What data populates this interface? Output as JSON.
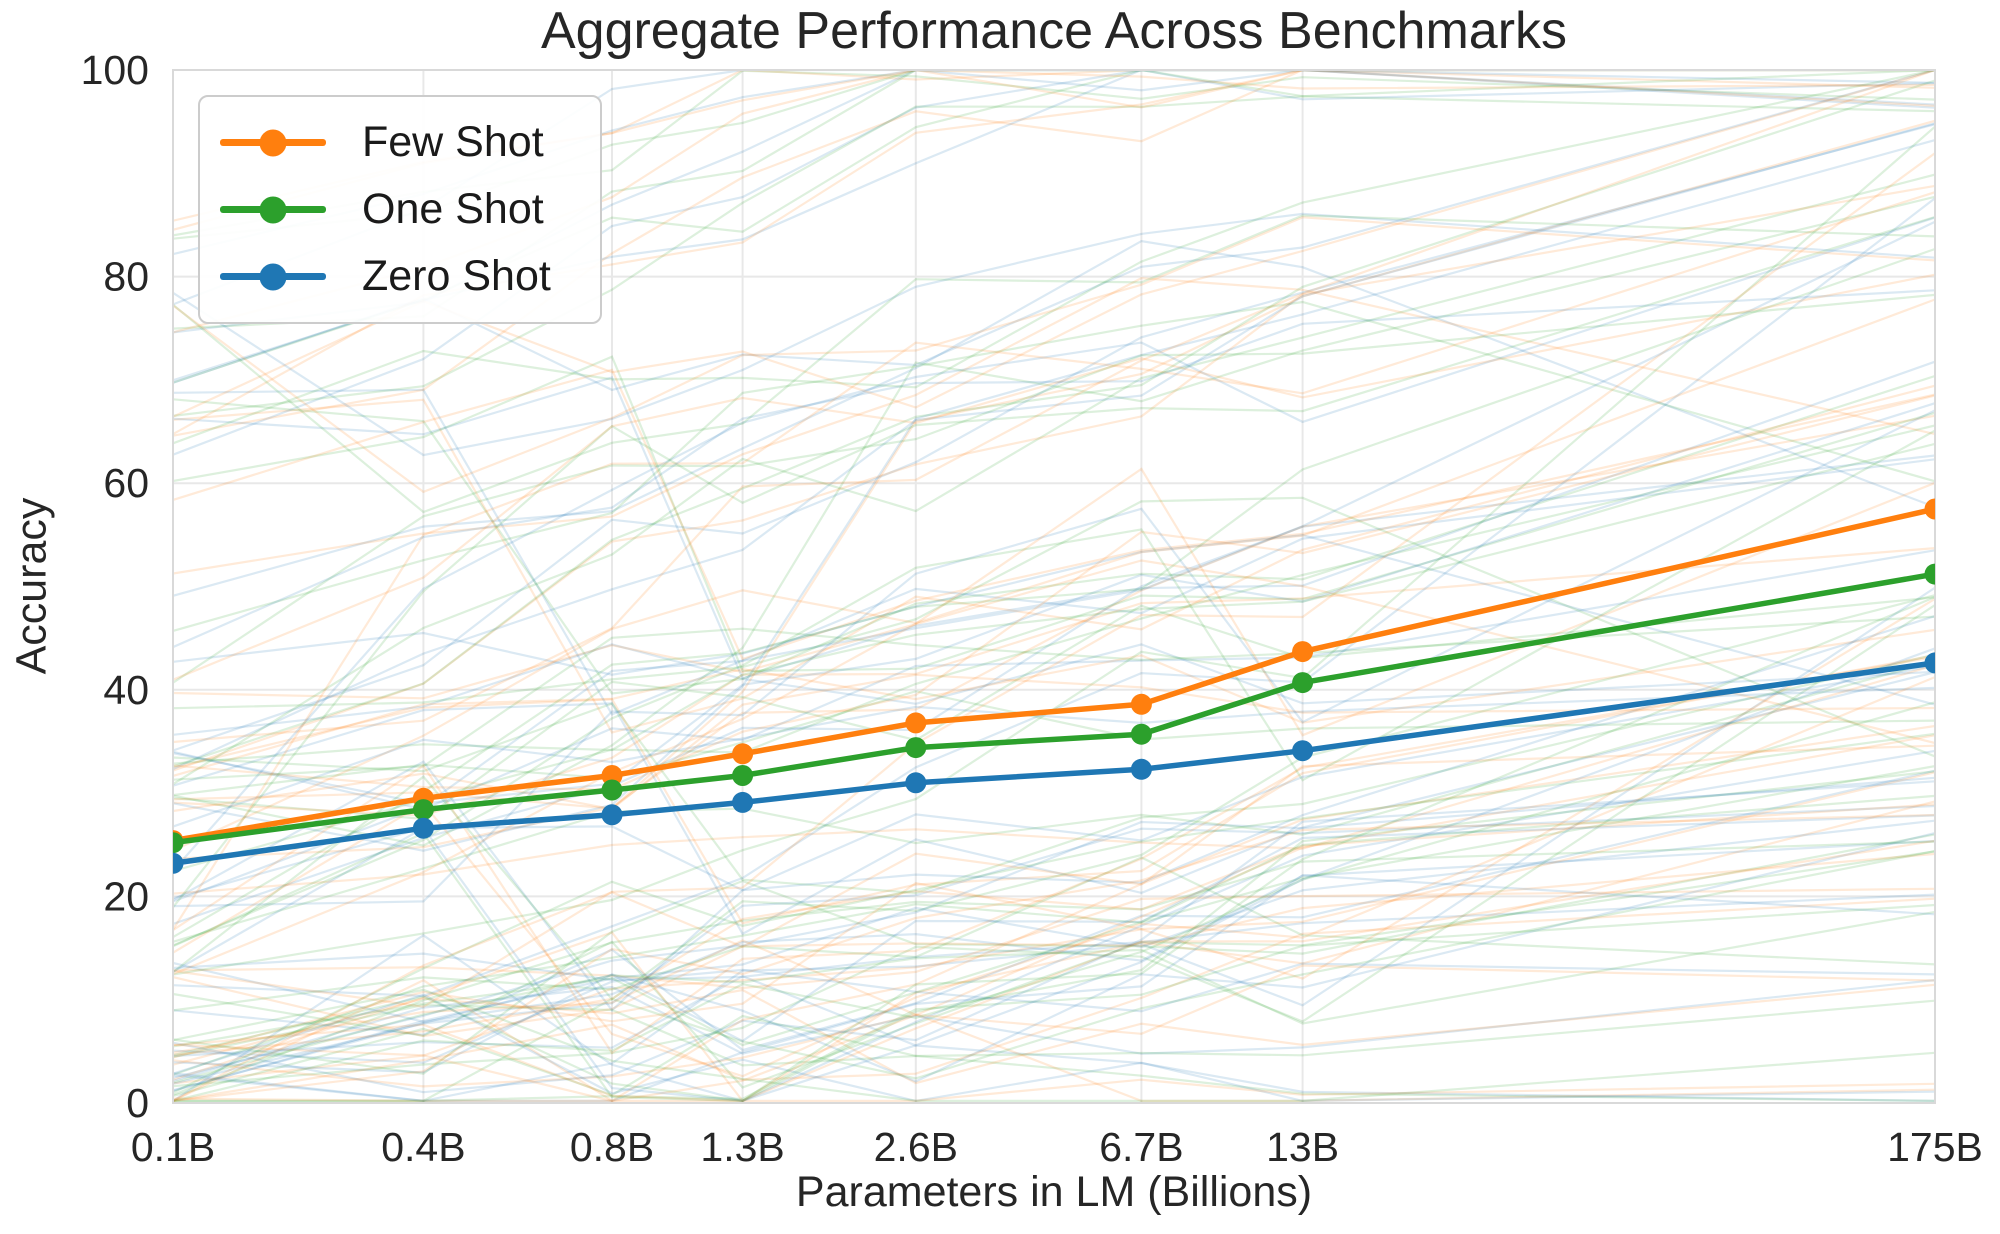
{
  "chart_data": {
    "type": "line",
    "title": "Aggregate Performance Across Benchmarks",
    "xlabel": "Parameters in LM (Billions)",
    "ylabel": "Accuracy",
    "x_scale": "log",
    "x_values": [
      0.125,
      0.35,
      0.76,
      1.3,
      2.65,
      6.7,
      13,
      175
    ],
    "x_tick_labels": [
      "0.1B",
      "0.4B",
      "0.8B",
      "1.3B",
      "2.6B",
      "6.7B",
      "13B",
      "175B"
    ],
    "y_ticks": [
      0,
      20,
      40,
      60,
      80,
      100
    ],
    "y_tick_labels": [
      "0",
      "20",
      "40",
      "60",
      "80",
      "100"
    ],
    "ylim": [
      0,
      100
    ],
    "grid": true,
    "legend_position": "upper left",
    "series": [
      {
        "name": "Few Shot",
        "color": "#ff7f0e",
        "values": [
          25.4,
          29.5,
          31.7,
          33.8,
          36.8,
          38.6,
          43.7,
          57.5
        ]
      },
      {
        "name": "One Shot",
        "color": "#2ca02c",
        "values": [
          25.2,
          28.4,
          30.3,
          31.7,
          34.4,
          35.7,
          40.7,
          51.2
        ]
      },
      {
        "name": "Zero Shot",
        "color": "#1f77b4",
        "values": [
          23.2,
          26.6,
          27.9,
          29.1,
          31.0,
          32.3,
          34.1,
          42.6
        ]
      }
    ],
    "background_lines": {
      "description": "Faint lines: individual benchmark results per setting",
      "colors": [
        "#1f77b4",
        "#2ca02c",
        "#ff7f0e"
      ],
      "benchmark_count": 44,
      "opacity": 0.16,
      "stroke_width": 2.2,
      "seed": 11
    },
    "style": {
      "grid_color": "#e8e8e8",
      "spine_color": "#d9d9d9",
      "text_color": "#262626",
      "background": "#ffffff"
    }
  }
}
